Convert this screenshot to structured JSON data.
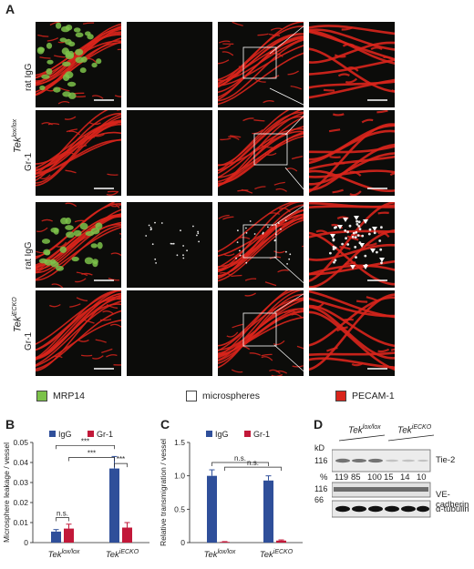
{
  "panels": {
    "A": {
      "letter": "A"
    },
    "B": {
      "letter": "B"
    },
    "C": {
      "letter": "C"
    },
    "D": {
      "letter": "D"
    }
  },
  "panel_a": {
    "group_labels": [
      "Tek^lox/lox",
      "Tek^iECKO"
    ],
    "group_label_bases": [
      "Tek",
      "Tek"
    ],
    "group_label_sups": [
      "lox/lox",
      "iECKO"
    ],
    "row_labels": [
      "rat IgG",
      "Gr-1",
      "rat IgG",
      "Gr-1"
    ],
    "legend": [
      {
        "label": "MRP14",
        "color": "#7cc24a"
      },
      {
        "label": "microspheres",
        "color": "#ffffff"
      },
      {
        "label": "PECAM-1",
        "color": "#d9251c"
      }
    ]
  },
  "colors": {
    "igg": "#2f4f9a",
    "gr1": "#c21839",
    "vessel": "#d9251c",
    "neutrophil": "#7cc24a"
  },
  "chart_data": [
    {
      "panel": "B",
      "type": "bar",
      "ylabel": "Microsphere leakage / vessel",
      "categories": [
        "Tek^lox/lox",
        "Tek^iECKO"
      ],
      "category_bases": [
        "Tek",
        "Tek"
      ],
      "category_sups": [
        "lox/lox",
        "iECKO"
      ],
      "series": [
        {
          "name": "IgG",
          "color": "#2f4f9a",
          "values": [
            0.0055,
            0.037
          ],
          "errors": [
            0.001,
            0.006
          ]
        },
        {
          "name": "Gr-1",
          "color": "#c21839",
          "values": [
            0.007,
            0.0075
          ],
          "errors": [
            0.0022,
            0.0025
          ]
        }
      ],
      "ylim": [
        0,
        0.05
      ],
      "yticks": [
        "0",
        "0.01",
        "0.02",
        "0.03",
        "0.04",
        "0.05"
      ],
      "ytick_values": [
        0,
        0.01,
        0.02,
        0.03,
        0.04,
        0.05
      ],
      "annotations": [
        {
          "label": "n.s.",
          "from": [
            0,
            0
          ],
          "to": [
            0,
            1
          ],
          "level": 0.0125
        },
        {
          "label": "***",
          "from": [
            0,
            0
          ],
          "to": [
            1,
            0
          ],
          "level": 0.0485
        },
        {
          "label": "***",
          "from": [
            0,
            1
          ],
          "to": [
            1,
            0
          ],
          "level": 0.0425
        },
        {
          "label": "***",
          "from": [
            1,
            0
          ],
          "to": [
            1,
            1
          ],
          "level": 0.0395
        }
      ]
    },
    {
      "panel": "C",
      "type": "bar",
      "ylabel": "Relative transmigration / vessel",
      "categories": [
        "Tek^lox/lox",
        "Tek^iECKO"
      ],
      "category_bases": [
        "Tek",
        "Tek"
      ],
      "category_sups": [
        "lox/lox",
        "iECKO"
      ],
      "series": [
        {
          "name": "IgG",
          "color": "#2f4f9a",
          "values": [
            1.0,
            0.93
          ],
          "errors": [
            0.09,
            0.07
          ]
        },
        {
          "name": "Gr-1",
          "color": "#c21839",
          "values": [
            0.01,
            0.03
          ],
          "errors": [
            0.005,
            0.01
          ]
        }
      ],
      "ylim": [
        0,
        1.5
      ],
      "yticks": [
        "0",
        "0.5",
        "1.0",
        "1.5"
      ],
      "ytick_values": [
        0,
        0.5,
        1.0,
        1.5
      ],
      "annotations": [
        {
          "label": "n.s.",
          "from": [
            0,
            0
          ],
          "to": [
            1,
            0
          ],
          "level": 1.2
        },
        {
          "label": "n.s.",
          "from": [
            0,
            1
          ],
          "to": [
            1,
            1
          ],
          "level": 1.13
        }
      ]
    }
  ],
  "panel_d": {
    "kd_label": "kD",
    "kd_marks": [
      "116",
      "116",
      "66"
    ],
    "group_bases": [
      "Tek",
      "Tek"
    ],
    "group_sups": [
      "lox/lox",
      "iECKO"
    ],
    "percent_symbol": "%",
    "percentages": [
      "119",
      "85",
      "100",
      "15",
      "14",
      "10"
    ],
    "band_labels": [
      "Tie-2",
      "VE-cadherin",
      "α-tubulin"
    ]
  }
}
